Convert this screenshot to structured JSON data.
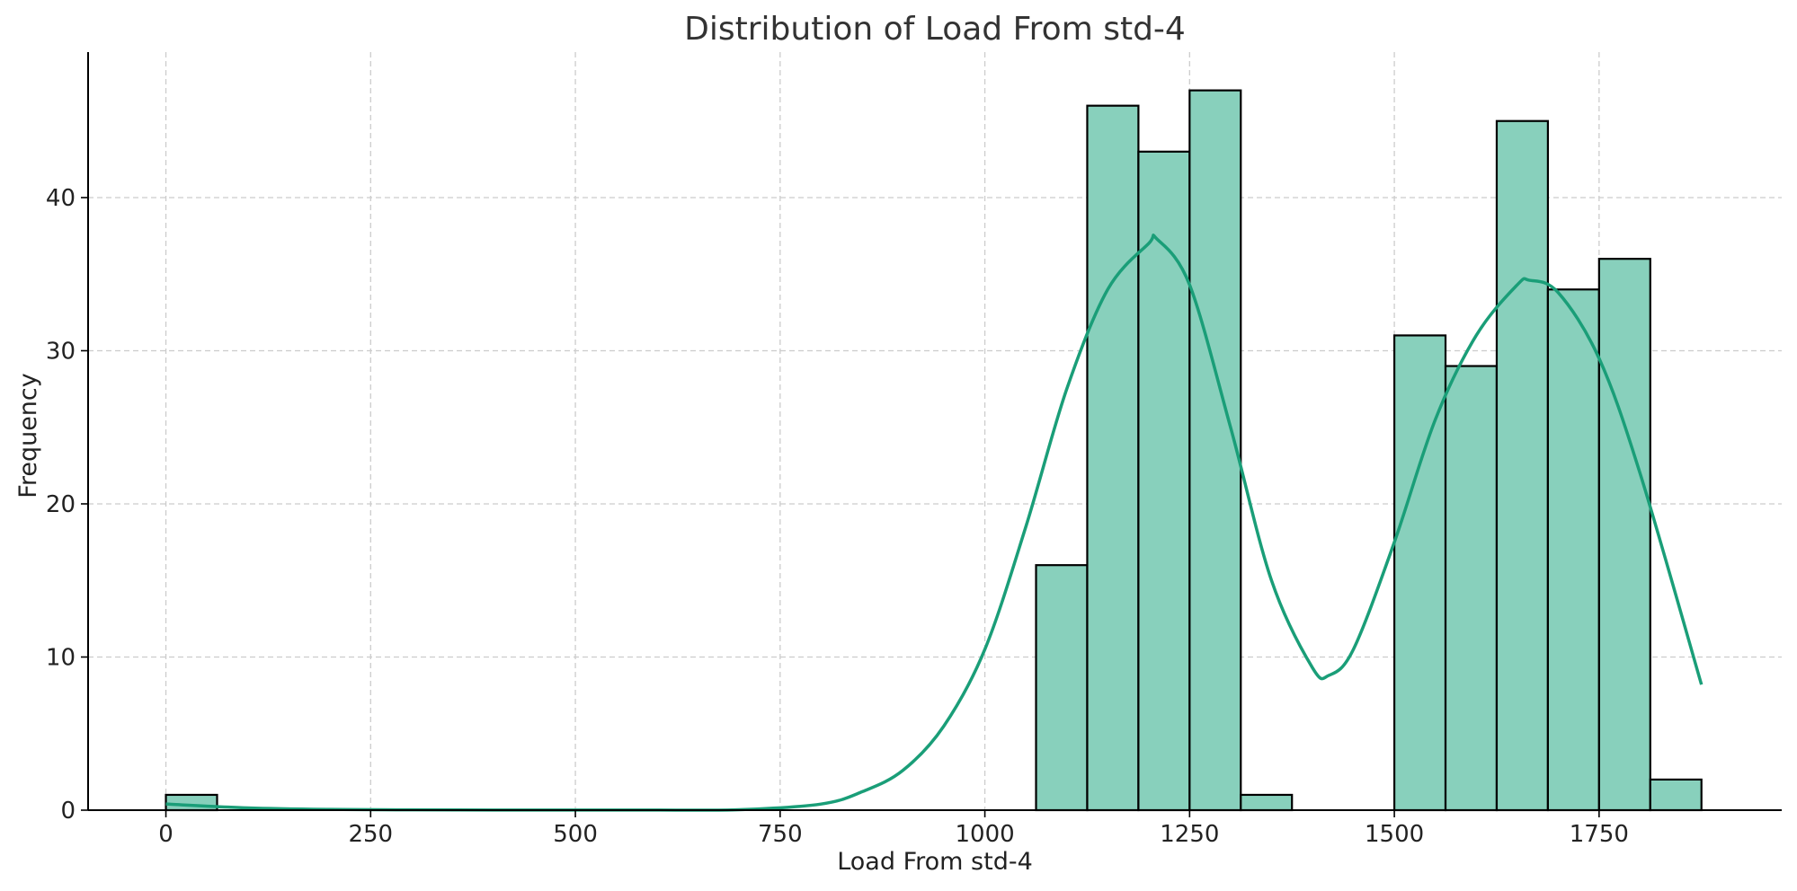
{
  "chart_data": {
    "type": "histogram",
    "title": "Distribution of Load From std-4",
    "xlabel": "Load From std-4",
    "ylabel": "Frequency",
    "xlim": [
      -95,
      1973
    ],
    "ylim": [
      0,
      49.5
    ],
    "x_ticks": [
      0,
      250,
      500,
      750,
      1000,
      1250,
      1500,
      1750
    ],
    "y_ticks": [
      0,
      10,
      20,
      30,
      40
    ],
    "grid": true,
    "bin_edges": [
      0,
      62.5,
      125,
      187.5,
      250,
      312.5,
      375,
      437.5,
      500,
      562.5,
      625,
      687.5,
      750,
      812.5,
      875,
      937.5,
      1000,
      1062.5,
      1125,
      1187.5,
      1250,
      1312.5,
      1375,
      1437.5,
      1500,
      1562.5,
      1625,
      1687.5,
      1750,
      1812.5,
      1875
    ],
    "counts": [
      1,
      0,
      0,
      0,
      0,
      0,
      0,
      0,
      0,
      0,
      0,
      0,
      0,
      0,
      0,
      0,
      0,
      16,
      46,
      43,
      47,
      1,
      0,
      0,
      31,
      29,
      45,
      34,
      36,
      2
    ],
    "kde": {
      "x": [
        0,
        100,
        200,
        300,
        400,
        500,
        600,
        700,
        800,
        850,
        900,
        950,
        1000,
        1050,
        1100,
        1150,
        1200,
        1210,
        1250,
        1300,
        1350,
        1400,
        1420,
        1450,
        1500,
        1550,
        1600,
        1650,
        1665,
        1700,
        1750,
        1800,
        1875
      ],
      "y": [
        0.4,
        0.15,
        0.05,
        0.02,
        0.01,
        0.01,
        0.01,
        0.03,
        0.4,
        1.2,
        2.6,
        5.5,
        10.5,
        18.5,
        27.5,
        34.0,
        37.0,
        37.3,
        34.3,
        25.0,
        15.0,
        9.3,
        8.8,
        10.5,
        17.5,
        25.5,
        31.0,
        34.3,
        34.6,
        33.8,
        29.5,
        22.0,
        8.2
      ]
    },
    "colors": {
      "bar_fill": "#88d0bc",
      "bar_edge": "#000000",
      "kde_line": "#1a9e78",
      "grid": "#cccccc"
    }
  }
}
